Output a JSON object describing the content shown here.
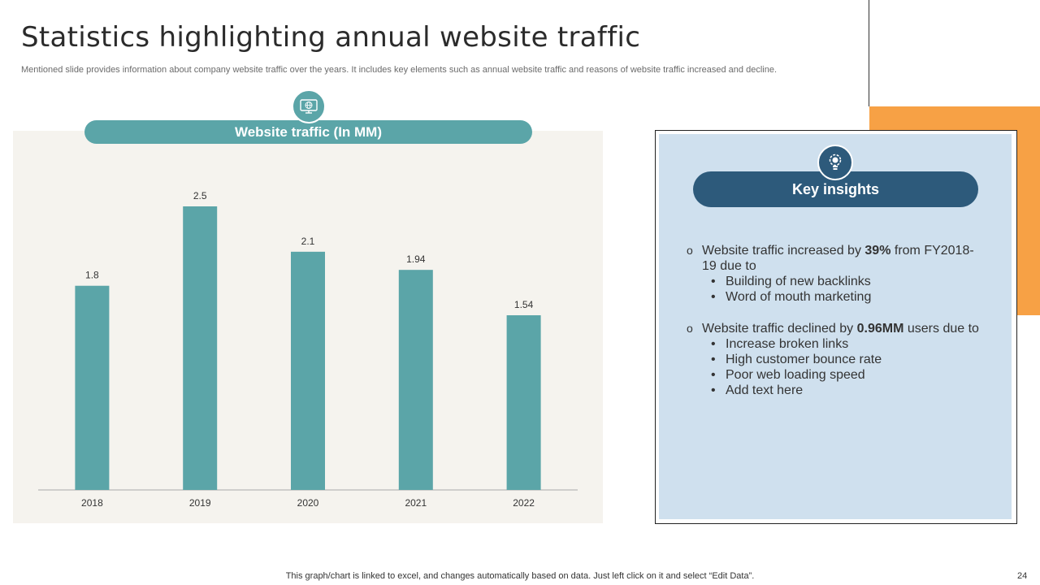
{
  "slide": {
    "title": "Statistics highlighting annual website traffic",
    "subtitle": "Mentioned slide provides information about company website traffic over the years. It includes key elements such as annual website traffic and reasons of website traffic increased and decline.",
    "footer_note": "This graph/chart is linked to excel,  and changes automatically based on data. Just left click on it and select “Edit Data”.",
    "page_number": "24"
  },
  "colors": {
    "bar": "#5ba5a8",
    "chart_panel_bg": "#f5f3ee",
    "insights_bg": "#cfe0ee",
    "insights_header": "#2d5a7b",
    "accent_orange": "#f7a145"
  },
  "icons": {
    "chart": "monitor-globe-icon",
    "insights": "lightbulb-gear-icon"
  },
  "chart_data": {
    "type": "bar",
    "title": "Website traffic (In MM)",
    "categories": [
      "2018",
      "2019",
      "2020",
      "2021",
      "2022"
    ],
    "values": [
      1.8,
      2.5,
      2.1,
      1.94,
      1.54
    ],
    "data_labels": [
      "1.8",
      "2.5",
      "2.1",
      "1.94",
      "1.54"
    ],
    "ylim": [
      0,
      2.5
    ],
    "grid": false,
    "legend": "none"
  },
  "insights": {
    "header": "Key insights",
    "increase": {
      "prefix": "Website traffic increased by ",
      "highlight": "39%",
      "suffix": " from FY2018-19 due to",
      "reasons": [
        "Building of new backlinks",
        "Word of mouth marketing"
      ]
    },
    "decline": {
      "prefix": "Website traffic declined by ",
      "highlight": "0.96MM",
      "suffix": " users due to",
      "reasons": [
        "Increase broken links",
        "High customer bounce rate",
        "Poor web loading speed",
        "Add text here"
      ]
    }
  }
}
